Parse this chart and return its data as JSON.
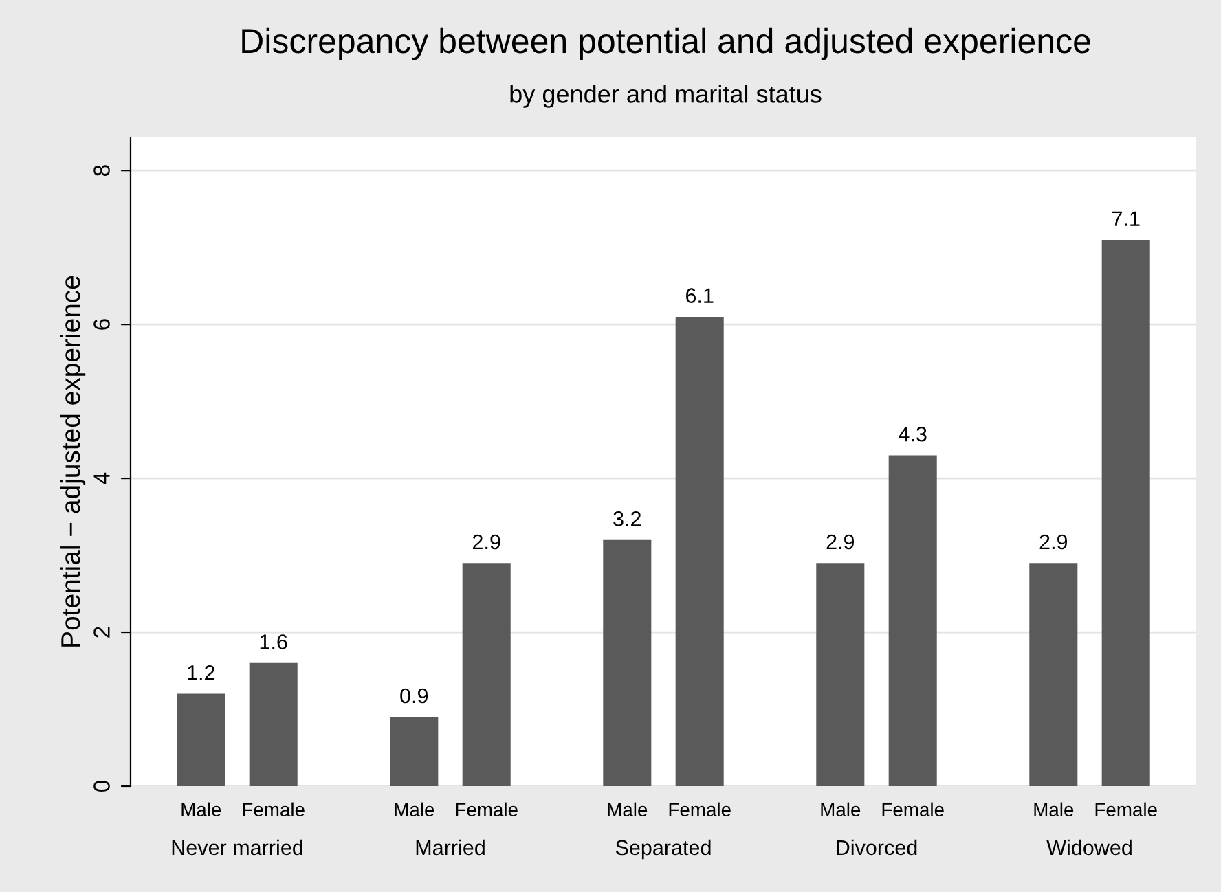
{
  "chart_data": {
    "type": "bar",
    "title": "Discrepancy between potential and adjusted experience",
    "subtitle": "by gender and marital status",
    "ylabel": "Potential − adjusted experience",
    "categories": [
      "Never married",
      "Married",
      "Separated",
      "Divorced",
      "Widowed"
    ],
    "series": [
      {
        "name": "Male",
        "color": "#5a5a5a",
        "values": [
          1.2,
          0.9,
          3.2,
          2.9,
          2.9
        ]
      },
      {
        "name": "Female",
        "color": "#5a5a5a",
        "values": [
          1.6,
          2.9,
          6.1,
          4.3,
          7.1
        ]
      }
    ],
    "ylim": [
      0,
      8.43
    ],
    "yticks": [
      0,
      2,
      4,
      6,
      8
    ],
    "grid": "y",
    "data_labels": true
  }
}
